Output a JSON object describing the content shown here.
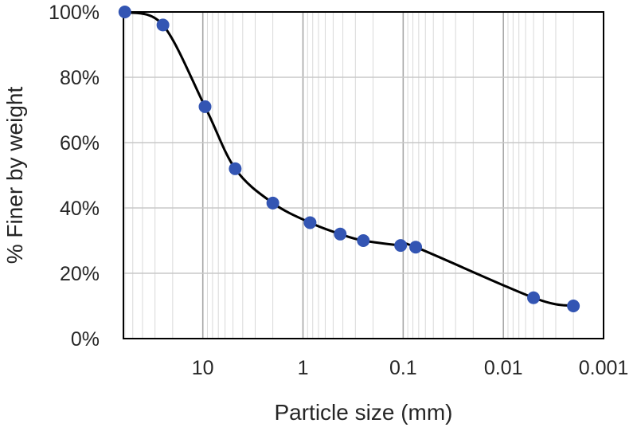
{
  "chart_data": {
    "type": "scatter",
    "title": "",
    "xlabel": "Particle size (mm)",
    "ylabel": "% Finer by weight",
    "x_scale": "log",
    "x_reversed": true,
    "xlim": [
      62,
      0.001
    ],
    "ylim": [
      0,
      100
    ],
    "x_ticks": [
      {
        "value": 10,
        "label": "10"
      },
      {
        "value": 1,
        "label": "1"
      },
      {
        "value": 0.1,
        "label": "0.1"
      },
      {
        "value": 0.01,
        "label": "0.01"
      },
      {
        "value": 0.001,
        "label": "0.001"
      }
    ],
    "y_ticks": [
      {
        "value": 0,
        "label": "0%"
      },
      {
        "value": 20,
        "label": "20%"
      },
      {
        "value": 40,
        "label": "40%"
      },
      {
        "value": 60,
        "label": "60%"
      },
      {
        "value": 80,
        "label": "80%"
      },
      {
        "value": 100,
        "label": "100%"
      }
    ],
    "grid": "major and minor",
    "smooth_line": true,
    "line_color": "#000000",
    "marker_color": "#3355b3",
    "series": [
      {
        "x": [
          60,
          25,
          9.5,
          4.75,
          2.0,
          0.85,
          0.425,
          0.25,
          0.106,
          0.075,
          0.005,
          0.002
        ],
        "y": [
          100,
          96,
          71,
          52,
          41.5,
          35.5,
          32,
          30,
          28.5,
          28,
          12.5,
          10
        ]
      }
    ]
  }
}
